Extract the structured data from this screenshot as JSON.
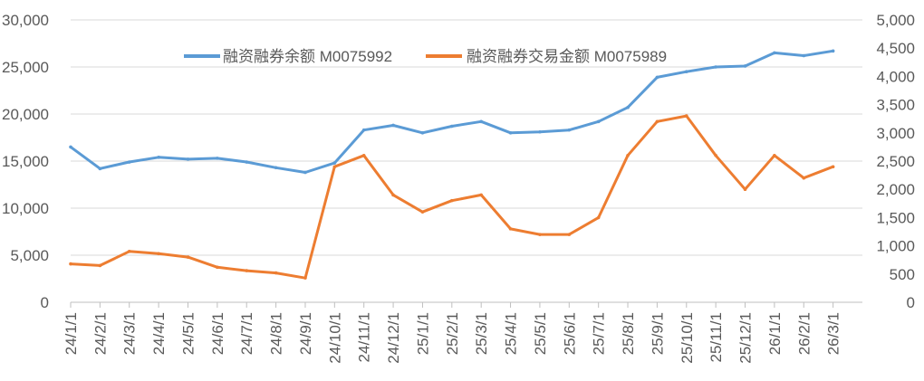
{
  "chart_data": {
    "type": "line",
    "x": [
      "24/1/1",
      "24/2/1",
      "24/3/1",
      "24/4/1",
      "24/5/1",
      "24/6/1",
      "24/7/1",
      "24/8/1",
      "24/9/1",
      "24/10/1",
      "24/11/1",
      "24/12/1",
      "25/1/1",
      "25/2/1",
      "25/3/1",
      "25/4/1",
      "25/5/1",
      "25/6/1",
      "25/7/1",
      "25/8/1",
      "25/9/1",
      "25/10/1",
      "25/11/1",
      "25/12/1",
      "26/1/1",
      "26/2/1",
      "26/3/1"
    ],
    "series": [
      {
        "name": "融资融券余额 M0075992",
        "axis": "left",
        "color": "#5B9BD5",
        "values": [
          16500,
          14200,
          14900,
          15400,
          15200,
          15300,
          14900,
          14300,
          13800,
          14800,
          18300,
          18800,
          18000,
          18700,
          19200,
          18000,
          18100,
          18300,
          19200,
          20700,
          23900,
          24500,
          25000,
          25100,
          26500,
          26200,
          26700
        ]
      },
      {
        "name": "融资融券交易金额 M0075989",
        "axis": "right",
        "color": "#ED7D31",
        "values": [
          680,
          650,
          900,
          860,
          800,
          620,
          560,
          520,
          430,
          2400,
          2600,
          1900,
          1600,
          1800,
          1900,
          1300,
          1200,
          1200,
          1500,
          2600,
          3200,
          3300,
          2600,
          2000,
          2600,
          2200,
          2400
        ]
      }
    ],
    "y_left": {
      "ylim": [
        0,
        30000
      ],
      "ticks": [
        "0",
        "5,000",
        "10,000",
        "15,000",
        "20,000",
        "25,000",
        "30,000"
      ]
    },
    "y_right": {
      "ylim": [
        0,
        5000
      ],
      "ticks": [
        "0",
        "500",
        "1,000",
        "1,500",
        "2,000",
        "2,500",
        "3,000",
        "3,500",
        "4,000",
        "4,500",
        "5,000"
      ]
    },
    "grid": "horizontal",
    "legend": "top-center"
  }
}
